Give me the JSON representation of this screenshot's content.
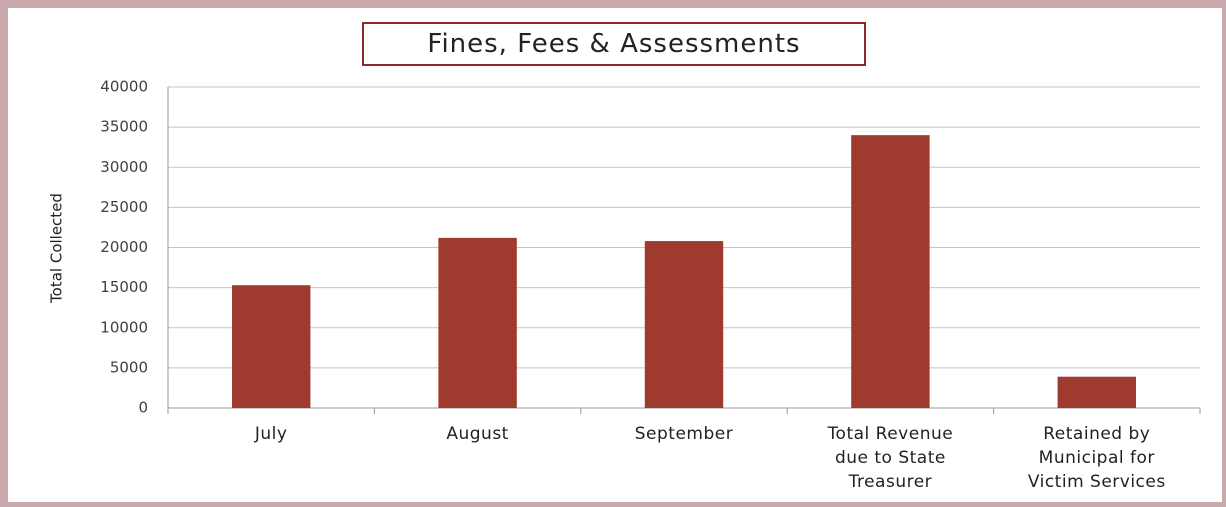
{
  "chart_data": {
    "type": "bar",
    "title": "Fines, Fees & Assessments",
    "y_label": "Total Collected",
    "categories": [
      "July",
      "August",
      "September",
      "Total Revenue due to State Treasurer",
      "Retained by Municipal for Victim Services"
    ],
    "values": [
      15300,
      21200,
      20800,
      34000,
      3900
    ],
    "color": "#9e3b2e",
    "ylim": [
      0,
      40000
    ],
    "yticks": [
      0,
      5000,
      10000,
      15000,
      20000,
      25000,
      30000,
      35000,
      40000
    ],
    "grid": true
  }
}
